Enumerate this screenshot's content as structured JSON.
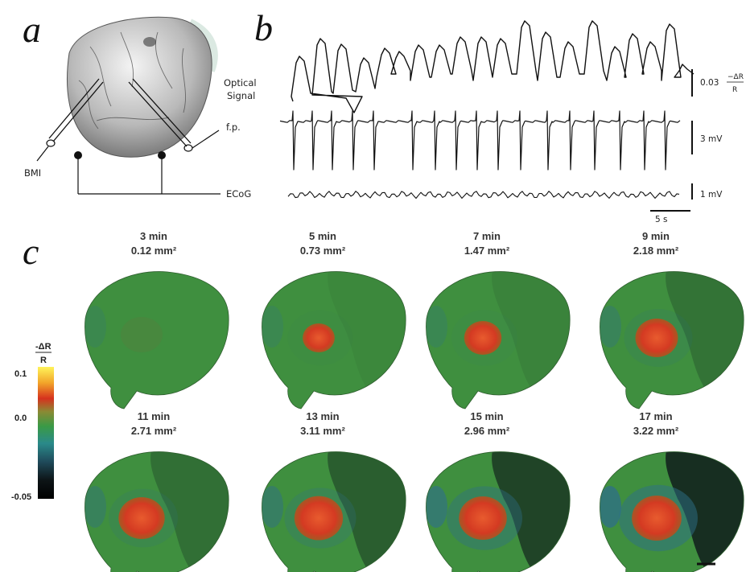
{
  "panels": {
    "a": "a",
    "b": "b",
    "c": "c"
  },
  "panel_a": {
    "labels": {
      "optical_line1": "Optical",
      "optical_line2": "Signal",
      "fp": "f.p.",
      "bmi": "BMI",
      "ecog": "ECoG"
    }
  },
  "panel_b": {
    "optical_scale_value": "0.03",
    "optical_scale_unit_num": "−ΔR",
    "optical_scale_unit_den": "R",
    "fp_scale": "3 mV",
    "ecog_scale": "1 mV",
    "time_scale": "5 s"
  },
  "panel_c": {
    "colorbar": {
      "title_num": "-ΔR",
      "title_den": "R",
      "ticks": [
        "0.1",
        "0.0",
        "-0.05"
      ]
    },
    "maps": [
      {
        "time": "3 min",
        "area": "0.12 mm²",
        "focus": 0.0,
        "dark": 0.0
      },
      {
        "time": "5 min",
        "area": "0.73 mm²",
        "focus": 0.45,
        "dark": 0.05
      },
      {
        "time": "7 min",
        "area": "1.47 mm²",
        "focus": 0.6,
        "dark": 0.1
      },
      {
        "time": "9 min",
        "area": "2.18 mm²",
        "focus": 0.75,
        "dark": 0.25
      },
      {
        "time": "11 min",
        "area": "2.71 mm²",
        "focus": 0.85,
        "dark": 0.3
      },
      {
        "time": "13 min",
        "area": "3.11 mm²",
        "focus": 0.92,
        "dark": 0.45
      },
      {
        "time": "15 min",
        "area": "2.96 mm²",
        "focus": 0.9,
        "dark": 0.7
      },
      {
        "time": "17 min",
        "area": "3.22 mm²",
        "focus": 0.95,
        "dark": 0.9
      }
    ]
  },
  "colors": {
    "cortex_green": "#3f8f3f",
    "focus_red": "#d8452a",
    "depression_dark": "#101d1c",
    "edge_blue": "#2e6f8a"
  }
}
